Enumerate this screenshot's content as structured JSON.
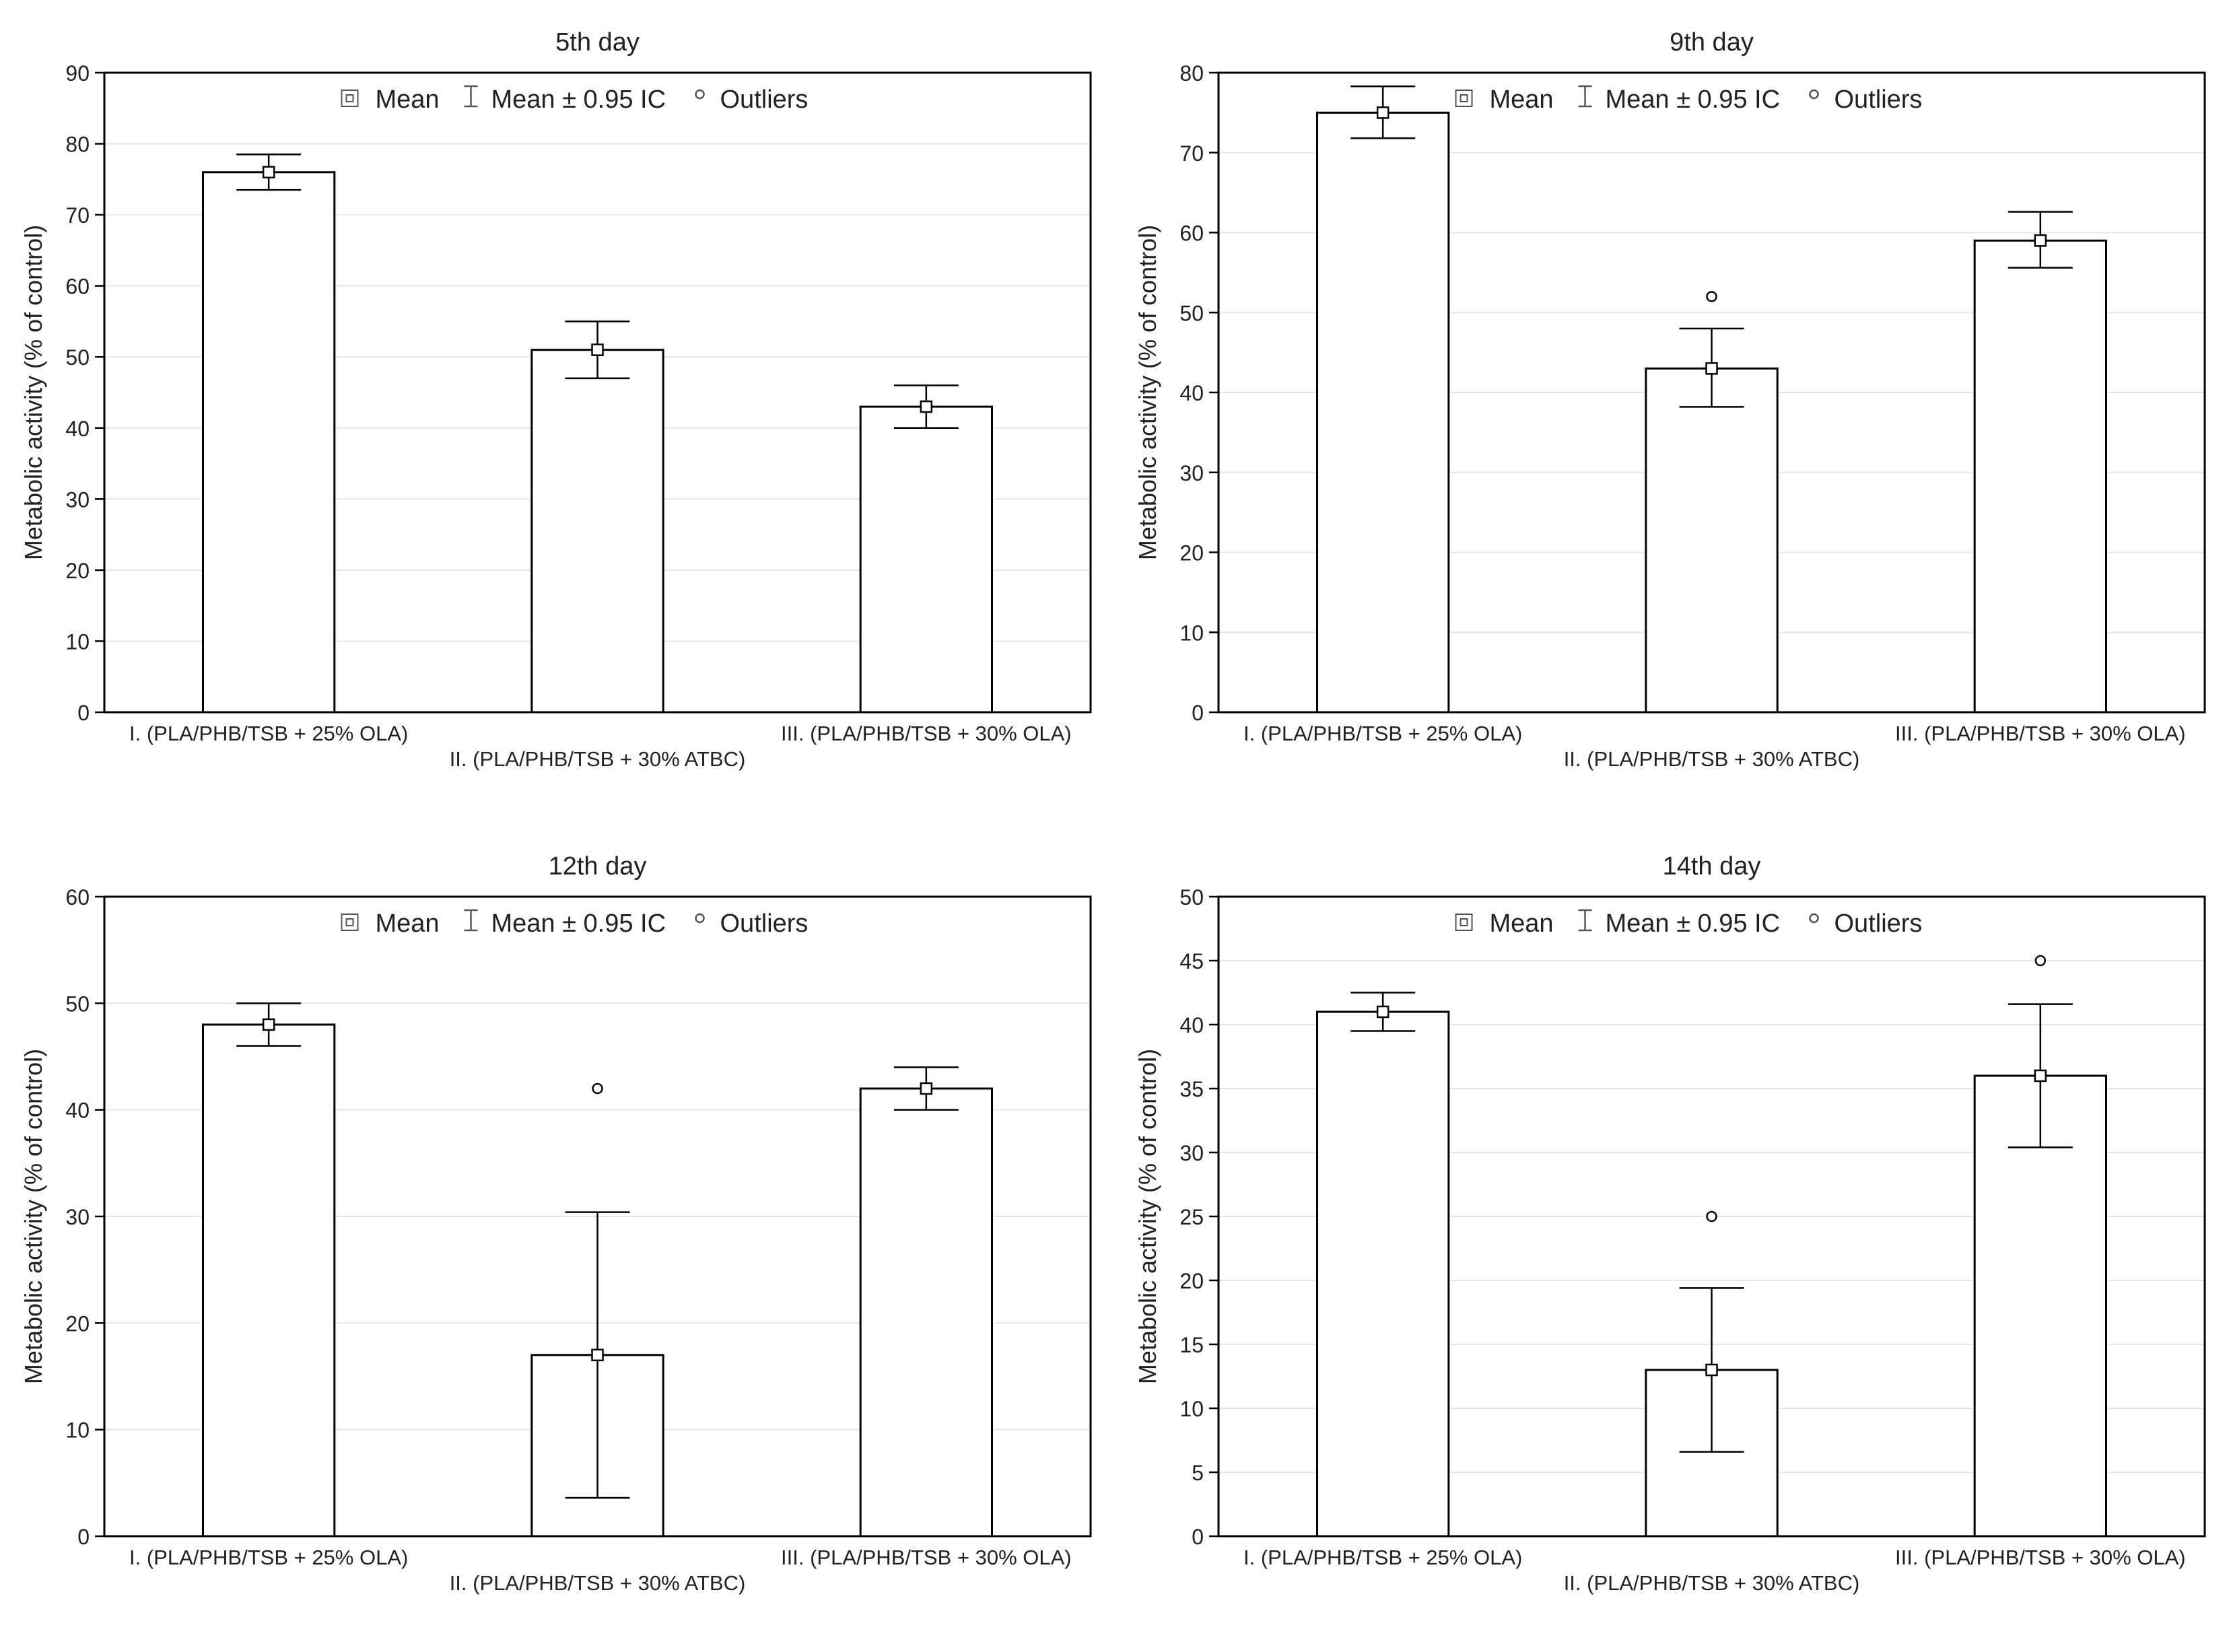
{
  "legend": {
    "mean_label": "Mean",
    "ci_label": "Mean ± 0.95 IC",
    "outliers_label": "Outliers"
  },
  "colors": {
    "bar_fill": "#ffffff",
    "stroke": "#000000",
    "grid": "#e6e6e6",
    "text": "#222222"
  },
  "chart_data": [
    {
      "type": "bar",
      "title": "5th day",
      "ylabel": "Metabolic activity (% of control)",
      "xlabel": "",
      "ylim": [
        0,
        90
      ],
      "yticks": [
        0,
        10,
        20,
        30,
        40,
        50,
        60,
        70,
        80,
        90
      ],
      "categories": [
        "I. (PLA/PHB/TSB + 25% OLA)",
        "II. (PLA/PHB/TSB + 30% ATBC)",
        "III. (PLA/PHB/TSB + 30% OLA)"
      ],
      "values": [
        76,
        51,
        43
      ],
      "ci_low": [
        73.5,
        47,
        40
      ],
      "ci_high": [
        78.5,
        55,
        46
      ],
      "outliers": [
        null,
        null,
        null
      ],
      "grid": true,
      "legend_position": "top"
    },
    {
      "type": "bar",
      "title": "9th day",
      "ylabel": "Metabolic activity (% of control)",
      "xlabel": "",
      "ylim": [
        0,
        80
      ],
      "yticks": [
        0,
        10,
        20,
        30,
        40,
        50,
        60,
        70,
        80
      ],
      "categories": [
        "I. (PLA/PHB/TSB + 25% OLA)",
        "II. (PLA/PHB/TSB + 30% ATBC)",
        "III. (PLA/PHB/TSB + 30% OLA)"
      ],
      "values": [
        75,
        43,
        59
      ],
      "ci_low": [
        71.8,
        38.2,
        55.6
      ],
      "ci_high": [
        78.3,
        48,
        62.6
      ],
      "outliers": [
        null,
        52,
        null
      ],
      "grid": true,
      "legend_position": "top"
    },
    {
      "type": "bar",
      "title": "12th day",
      "ylabel": "Metabolic activity (% of control)",
      "xlabel": "",
      "ylim": [
        0,
        60
      ],
      "yticks": [
        0,
        10,
        20,
        30,
        40,
        50,
        60
      ],
      "categories": [
        "I. (PLA/PHB/TSB + 25% OLA)",
        "II. (PLA/PHB/TSB + 30% ATBC)",
        "III. (PLA/PHB/TSB + 30% OLA)"
      ],
      "values": [
        48,
        17,
        42
      ],
      "ci_low": [
        46,
        3.6,
        40
      ],
      "ci_high": [
        50,
        30.4,
        44
      ],
      "outliers": [
        null,
        42,
        null
      ],
      "grid": true,
      "legend_position": "top"
    },
    {
      "type": "bar",
      "title": "14th day",
      "ylabel": "Metabolic activity (% of control)",
      "xlabel": "",
      "ylim": [
        0,
        50
      ],
      "yticks": [
        0,
        5,
        10,
        15,
        20,
        25,
        30,
        35,
        40,
        45,
        50
      ],
      "categories": [
        "I. (PLA/PHB/TSB + 25% OLA)",
        "II. (PLA/PHB/TSB + 30% ATBC)",
        "III. (PLA/PHB/TSB + 30% OLA)"
      ],
      "values": [
        41,
        13,
        36
      ],
      "ci_low": [
        39.5,
        6.6,
        30.4
      ],
      "ci_high": [
        42.5,
        19.4,
        41.6
      ],
      "outliers": [
        null,
        25,
        45
      ],
      "grid": true,
      "legend_position": "top"
    }
  ]
}
